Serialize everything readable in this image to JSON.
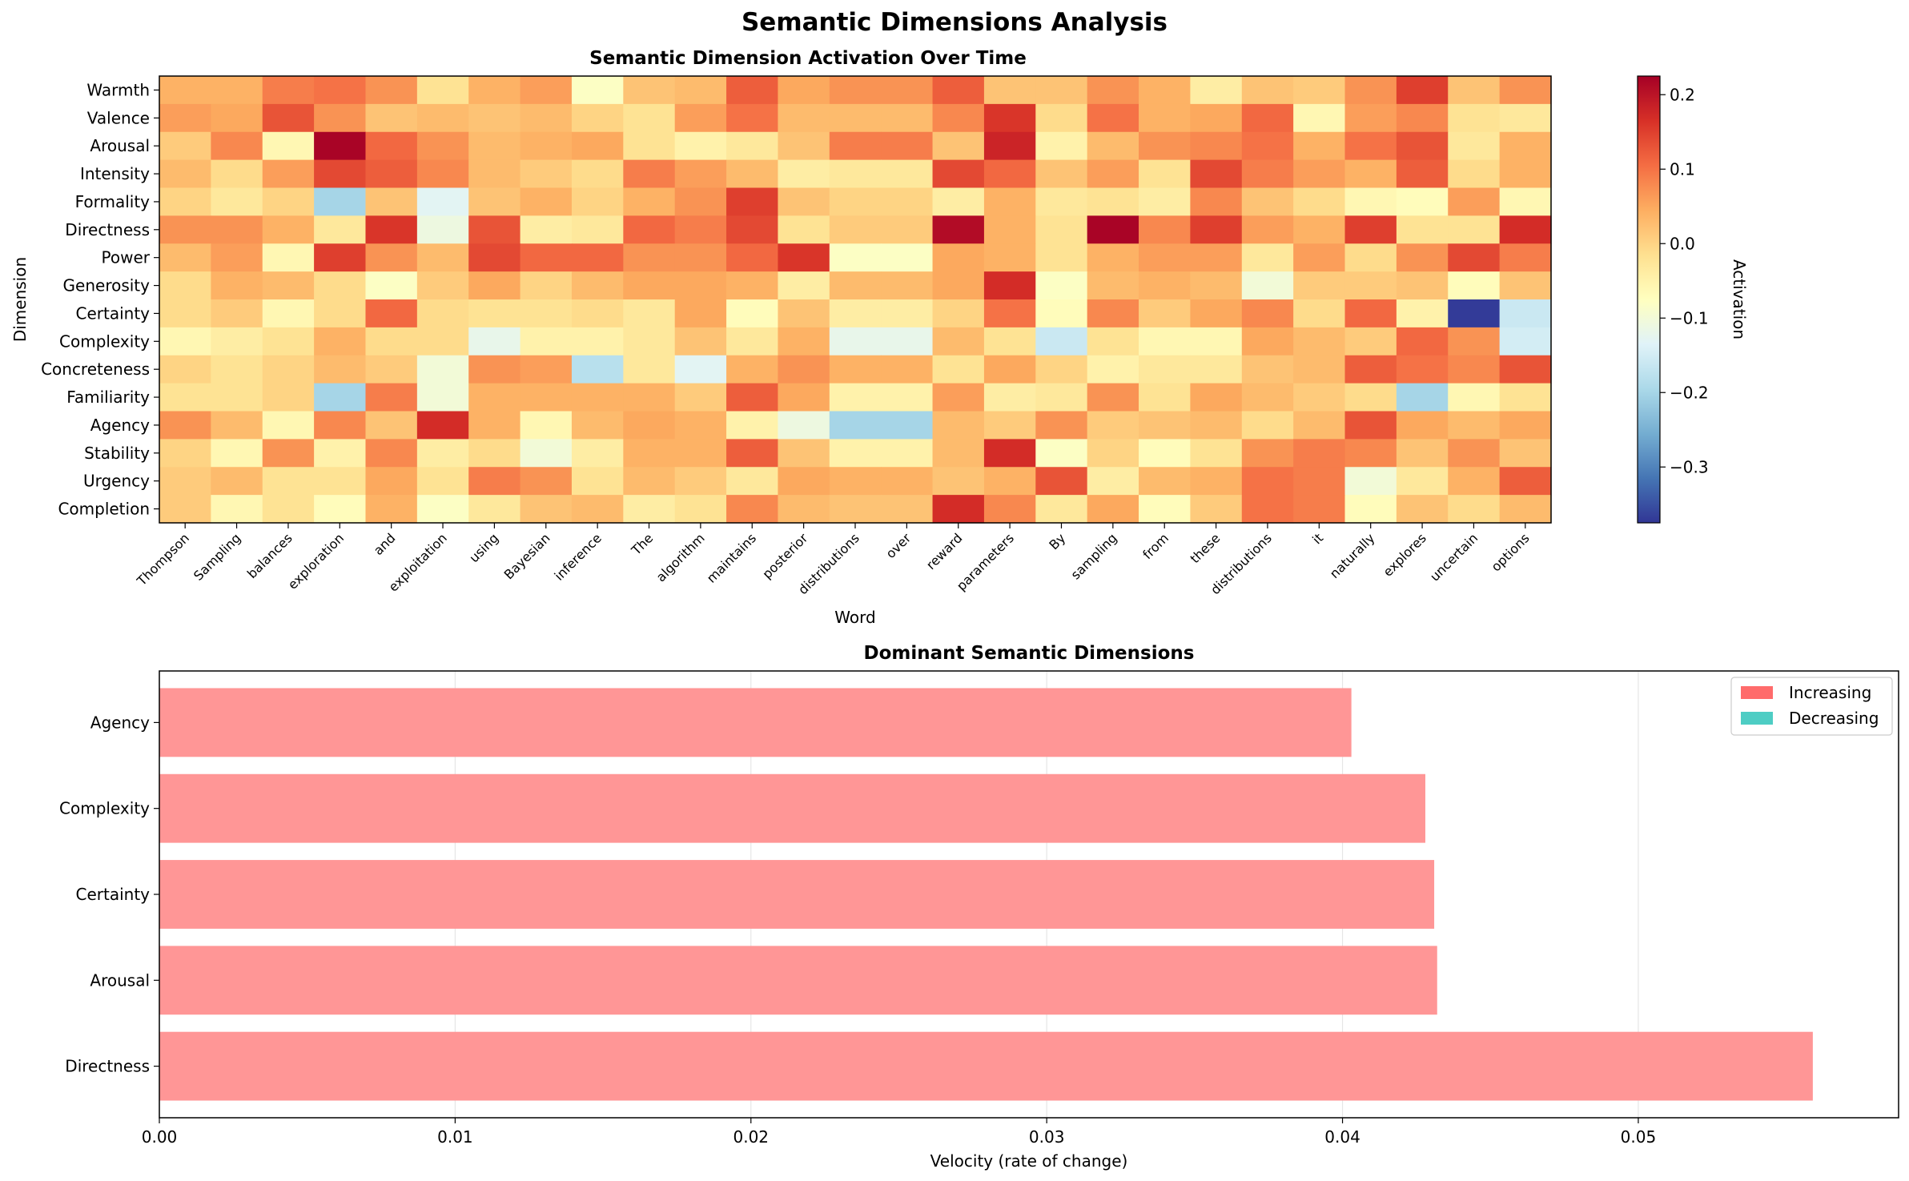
{
  "figure": {
    "suptitle": "Semantic Dimensions Analysis"
  },
  "chart_data": [
    {
      "type": "heatmap",
      "title": "Semantic Dimension Activation Over Time",
      "xlabel": "Word",
      "ylabel": "Dimension",
      "colorbar": {
        "label": "Activation",
        "colormap": "RdYlBu_r",
        "vmin": -0.375,
        "vmax": 0.225,
        "ticks": [
          0.2,
          0.1,
          0.0,
          -0.1,
          -0.2,
          -0.3
        ],
        "tick_labels": [
          "0.2",
          "0.1",
          "0.0",
          "−0.1",
          "−0.2",
          "−0.3"
        ]
      },
      "x_labels": [
        "Thompson",
        "Sampling",
        "balances",
        "exploration",
        "and",
        "exploitation",
        "using",
        "Bayesian",
        "inference",
        "The",
        "algorithm",
        "maintains",
        "posterior",
        "distributions",
        "over",
        "reward",
        "parameters",
        "By",
        "sampling",
        "from",
        "these",
        "distributions",
        "it",
        "naturally",
        "explores",
        "uncertain",
        "options"
      ],
      "y_labels": [
        "Warmth",
        "Valence",
        "Arousal",
        "Intensity",
        "Formality",
        "Directness",
        "Power",
        "Generosity",
        "Certainty",
        "Complexity",
        "Concreteness",
        "Familiarity",
        "Agency",
        "Stability",
        "Urgency",
        "Completion"
      ],
      "values": [
        [
          0.04,
          0.04,
          0.09,
          0.1,
          0.07,
          -0.02,
          0.04,
          0.06,
          -0.08,
          0.02,
          0.03,
          0.12,
          0.05,
          0.07,
          0.07,
          0.12,
          0.02,
          0.02,
          0.07,
          0.04,
          -0.04,
          0.02,
          0.01,
          0.07,
          0.15,
          0.02,
          0.07
        ],
        [
          0.06,
          0.05,
          0.13,
          0.07,
          0.02,
          0.03,
          0.02,
          0.03,
          0.0,
          -0.02,
          0.06,
          0.1,
          0.03,
          0.03,
          0.03,
          0.08,
          0.16,
          -0.01,
          0.1,
          0.04,
          0.05,
          0.11,
          -0.06,
          0.06,
          0.08,
          -0.02,
          -0.03
        ],
        [
          0.01,
          0.08,
          -0.06,
          0.22,
          0.11,
          0.07,
          0.03,
          0.04,
          0.05,
          -0.02,
          -0.05,
          -0.03,
          0.02,
          0.09,
          0.09,
          0.02,
          0.18,
          -0.05,
          0.03,
          0.07,
          0.08,
          0.1,
          0.04,
          0.1,
          0.13,
          -0.03,
          0.04
        ],
        [
          0.03,
          -0.01,
          0.06,
          0.14,
          0.12,
          0.08,
          0.03,
          0.01,
          -0.01,
          0.09,
          0.06,
          0.03,
          -0.04,
          -0.03,
          -0.03,
          0.14,
          0.11,
          0.02,
          0.06,
          -0.02,
          0.14,
          0.09,
          0.06,
          0.04,
          0.12,
          -0.01,
          0.04
        ],
        [
          0.0,
          -0.03,
          0.0,
          -0.2,
          0.02,
          -0.13,
          0.02,
          0.04,
          0.0,
          0.04,
          0.07,
          0.15,
          0.02,
          0.0,
          0.0,
          -0.04,
          0.04,
          -0.03,
          -0.02,
          -0.04,
          0.08,
          0.02,
          -0.01,
          -0.06,
          -0.07,
          0.06,
          -0.06
        ],
        [
          0.07,
          0.07,
          0.04,
          -0.03,
          0.16,
          -0.11,
          0.13,
          -0.04,
          -0.03,
          0.11,
          0.09,
          0.14,
          -0.02,
          0.01,
          0.01,
          0.21,
          0.04,
          -0.02,
          0.22,
          0.08,
          0.15,
          0.06,
          0.04,
          0.15,
          -0.02,
          -0.02,
          0.17
        ],
        [
          0.03,
          0.06,
          -0.06,
          0.15,
          0.07,
          0.03,
          0.14,
          0.11,
          0.11,
          0.07,
          0.07,
          0.11,
          0.16,
          -0.08,
          -0.08,
          0.05,
          0.04,
          -0.02,
          0.04,
          0.06,
          0.06,
          -0.03,
          0.06,
          -0.01,
          0.07,
          0.14,
          0.09
        ],
        [
          -0.01,
          0.04,
          0.03,
          -0.01,
          -0.08,
          0.01,
          0.05,
          0.0,
          0.03,
          0.05,
          0.05,
          0.04,
          -0.04,
          0.03,
          0.03,
          0.05,
          0.17,
          -0.08,
          0.03,
          0.04,
          0.03,
          -0.1,
          0.01,
          0.01,
          0.02,
          -0.07,
          0.02
        ],
        [
          -0.01,
          0.01,
          -0.06,
          -0.01,
          0.11,
          -0.01,
          -0.02,
          -0.02,
          -0.01,
          -0.03,
          0.05,
          -0.07,
          0.02,
          -0.04,
          -0.04,
          0.0,
          0.1,
          -0.07,
          0.08,
          0.01,
          0.05,
          0.08,
          -0.01,
          0.11,
          -0.05,
          -0.37,
          -0.16
        ],
        [
          -0.06,
          -0.04,
          -0.02,
          0.04,
          -0.01,
          -0.01,
          -0.12,
          -0.05,
          -0.05,
          -0.03,
          0.02,
          -0.03,
          0.04,
          -0.12,
          -0.12,
          0.03,
          -0.02,
          -0.16,
          -0.02,
          -0.06,
          -0.06,
          0.05,
          0.03,
          0.01,
          0.11,
          0.07,
          -0.15
        ],
        [
          0.0,
          -0.02,
          0.0,
          0.03,
          0.01,
          -0.1,
          0.07,
          0.06,
          -0.18,
          -0.03,
          -0.13,
          0.04,
          0.07,
          0.04,
          0.04,
          -0.02,
          0.05,
          0.0,
          -0.05,
          -0.03,
          -0.03,
          0.02,
          0.03,
          0.12,
          0.1,
          0.08,
          0.13
        ],
        [
          -0.02,
          -0.02,
          0.0,
          -0.2,
          0.09,
          -0.1,
          0.04,
          0.04,
          0.04,
          0.04,
          0.01,
          0.12,
          0.05,
          -0.05,
          -0.05,
          0.06,
          -0.04,
          -0.03,
          0.07,
          -0.02,
          0.05,
          0.03,
          0.01,
          -0.01,
          -0.2,
          -0.06,
          -0.02
        ],
        [
          0.07,
          0.03,
          -0.06,
          0.08,
          0.02,
          0.17,
          0.04,
          -0.06,
          0.03,
          0.05,
          0.04,
          -0.05,
          -0.11,
          -0.2,
          -0.2,
          0.03,
          0.01,
          0.07,
          0.01,
          0.02,
          0.03,
          -0.01,
          0.03,
          0.13,
          0.05,
          0.03,
          0.05
        ],
        [
          0.0,
          -0.06,
          0.07,
          -0.05,
          0.08,
          -0.04,
          -0.01,
          -0.1,
          -0.04,
          0.04,
          0.04,
          0.12,
          0.02,
          -0.05,
          -0.05,
          0.03,
          0.17,
          -0.08,
          0.0,
          -0.07,
          -0.02,
          0.07,
          0.09,
          0.08,
          0.02,
          0.07,
          0.02
        ],
        [
          0.01,
          0.03,
          -0.02,
          -0.02,
          0.05,
          -0.02,
          0.09,
          0.07,
          -0.02,
          0.03,
          0.01,
          -0.03,
          0.05,
          0.04,
          0.04,
          0.02,
          0.04,
          0.13,
          -0.04,
          0.03,
          0.04,
          0.1,
          0.09,
          -0.1,
          -0.03,
          0.04,
          0.12
        ],
        [
          0.01,
          -0.06,
          -0.02,
          -0.07,
          0.04,
          -0.08,
          -0.03,
          0.02,
          0.03,
          -0.04,
          -0.02,
          0.08,
          0.03,
          0.02,
          0.02,
          0.17,
          0.08,
          -0.03,
          0.05,
          -0.07,
          0.01,
          0.1,
          0.09,
          -0.07,
          0.02,
          -0.01,
          0.03
        ]
      ]
    },
    {
      "type": "bar",
      "orientation": "horizontal",
      "title": "Dominant Semantic Dimensions",
      "xlabel": "Velocity (rate of change)",
      "categories": [
        "Agency",
        "Complexity",
        "Certainty",
        "Arousal",
        "Directness"
      ],
      "values": [
        0.0403,
        0.0428,
        0.0431,
        0.0432,
        0.0559
      ],
      "directions": [
        "Increasing",
        "Increasing",
        "Increasing",
        "Increasing",
        "Increasing"
      ],
      "xlim": [
        0,
        0.0588
      ],
      "xticks": [
        0.0,
        0.01,
        0.02,
        0.03,
        0.04,
        0.05
      ],
      "xtick_labels": [
        "0.00",
        "0.01",
        "0.02",
        "0.03",
        "0.04",
        "0.05"
      ],
      "grid": "x",
      "legend": {
        "position": "top-right",
        "entries": [
          {
            "label": "Increasing",
            "color": "#ff6b6b"
          },
          {
            "label": "Decreasing",
            "color": "#4ecdc4"
          }
        ]
      },
      "bar_color": "#ff9696"
    }
  ]
}
